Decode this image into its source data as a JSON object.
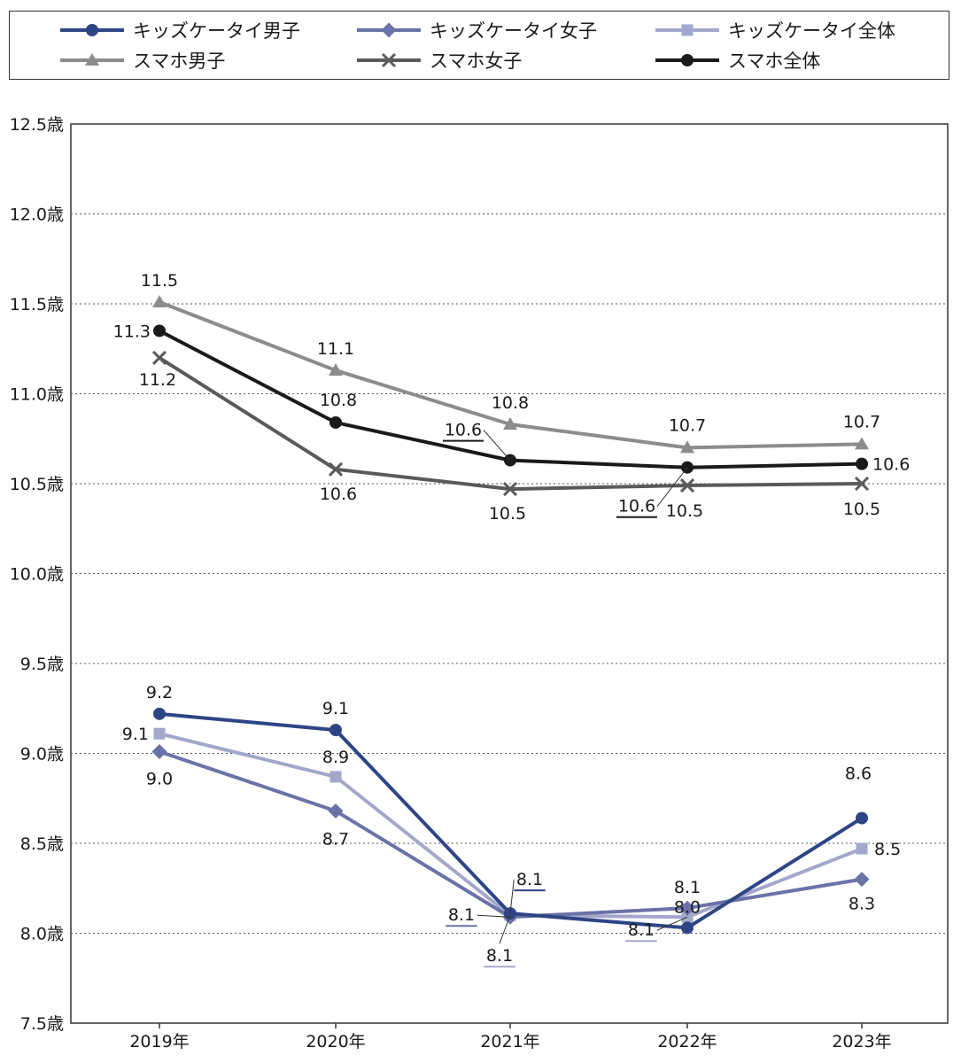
{
  "legend": [
    {
      "name": "キッズケータイ男子",
      "color": "#2e4585",
      "marker": "circle"
    },
    {
      "name": "キッズケータイ女子",
      "color": "#6b72a8",
      "marker": "diamond"
    },
    {
      "name": "キッズケータイ全体",
      "color": "#a4a7cb",
      "marker": "square"
    },
    {
      "name": "スマホ男子",
      "color": "#8c8c8c",
      "marker": "triangle"
    },
    {
      "name": "スマホ女子",
      "color": "#5a5a5a",
      "marker": "x"
    },
    {
      "name": "スマホ全体",
      "color": "#1a1a1a",
      "marker": "circle"
    }
  ],
  "chart_data": {
    "type": "line",
    "categories": [
      "2019年",
      "2020年",
      "2021年",
      "2022年",
      "2023年"
    ],
    "ylim": [
      7.5,
      12.5
    ],
    "yticks": [
      "7.5歳",
      "8.0歳",
      "8.5歳",
      "9.0歳",
      "9.5歳",
      "10.0歳",
      "10.5歳",
      "11.0歳",
      "11.5歳",
      "12.0歳",
      "12.5歳"
    ],
    "ytick_values": [
      7.5,
      8.0,
      8.5,
      9.0,
      9.5,
      10.0,
      10.5,
      11.0,
      11.5,
      12.0,
      12.5
    ],
    "grid": "horizontal-dotted",
    "legend_position": "top",
    "series": [
      {
        "name": "キッズケータイ男子",
        "color": "#2e4585",
        "marker": "circle",
        "values": [
          9.22,
          9.13,
          8.11,
          8.03,
          8.64
        ],
        "labels": [
          "9.2",
          "9.1",
          "8.1",
          "8.0",
          "8.6"
        ]
      },
      {
        "name": "キッズケータイ女子",
        "color": "#6b72a8",
        "marker": "diamond",
        "values": [
          9.01,
          8.68,
          8.09,
          8.14,
          8.3
        ],
        "labels": [
          "9.0",
          "8.7",
          "8.1",
          "8.1",
          "8.3"
        ]
      },
      {
        "name": "キッズケータイ全体",
        "color": "#a4a7cb",
        "marker": "square",
        "values": [
          9.11,
          8.87,
          8.1,
          8.09,
          8.47
        ],
        "labels": [
          "9.1",
          "8.9",
          "8.1",
          "8.1",
          "8.5"
        ]
      },
      {
        "name": "スマホ男子",
        "color": "#8c8c8c",
        "marker": "triangle",
        "values": [
          11.51,
          11.13,
          10.83,
          10.7,
          10.72
        ],
        "labels": [
          "11.5",
          "11.1",
          "10.8",
          "10.7",
          "10.7"
        ]
      },
      {
        "name": "スマホ女子",
        "color": "#5a5a5a",
        "marker": "x",
        "values": [
          11.2,
          10.58,
          10.47,
          10.49,
          10.5
        ],
        "labels": [
          "11.2",
          "10.6",
          "10.5",
          "10.5",
          "10.5"
        ]
      },
      {
        "name": "スマホ全体",
        "color": "#1a1a1a",
        "marker": "circle",
        "values": [
          11.35,
          10.84,
          10.63,
          10.59,
          10.61
        ],
        "labels": [
          "11.3",
          "10.8",
          "10.6",
          "10.6",
          "10.6"
        ]
      }
    ]
  }
}
